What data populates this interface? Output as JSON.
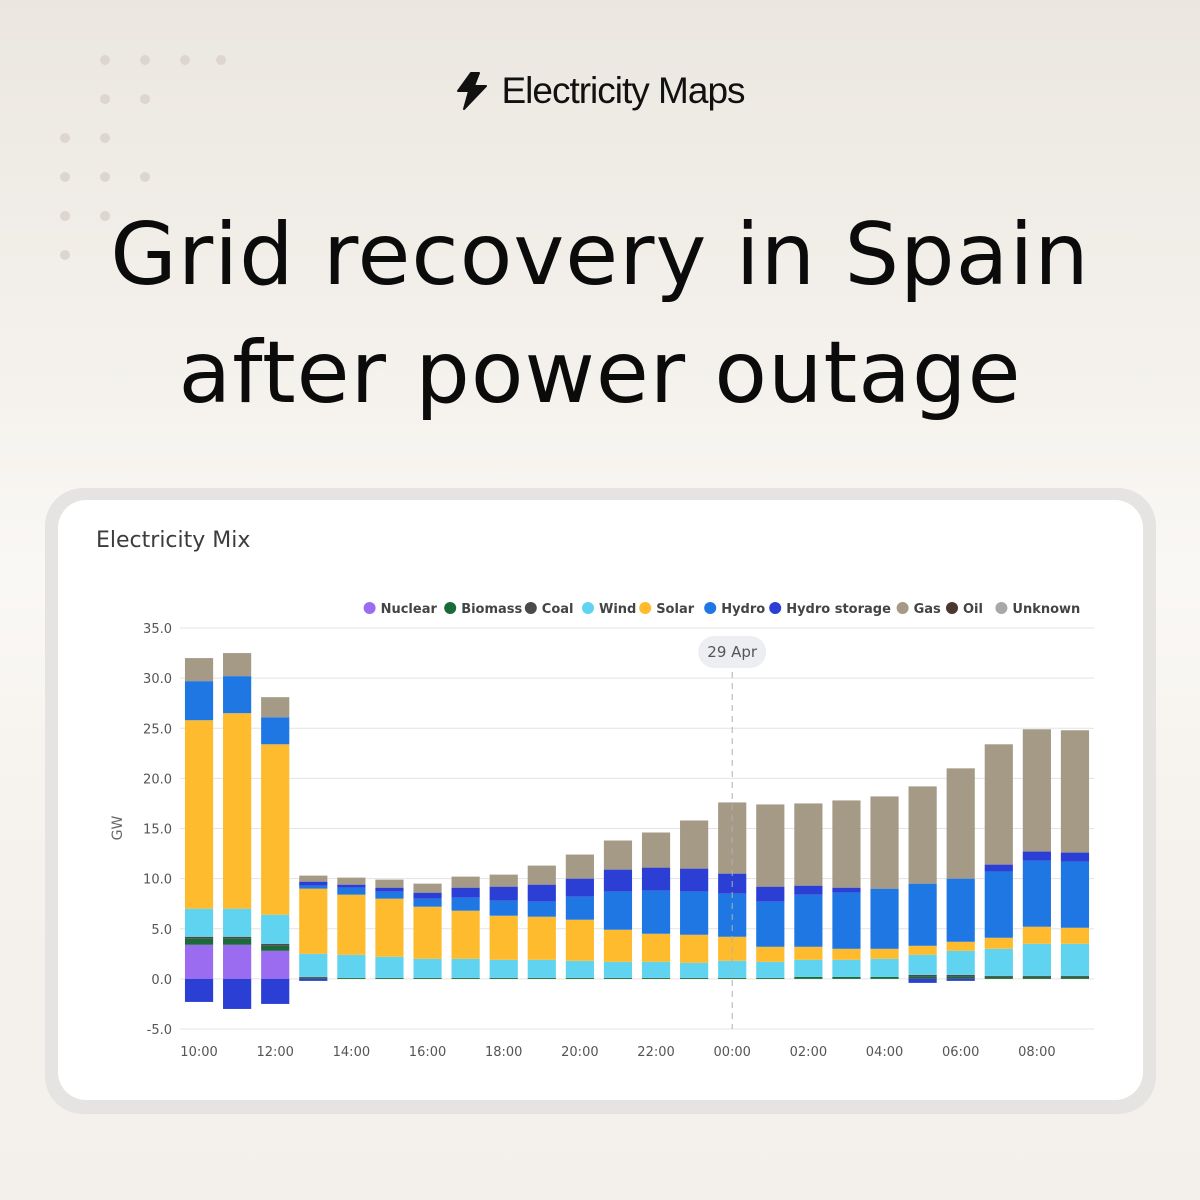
{
  "brand": {
    "name": "Electricity Maps",
    "icon": "lightning-bolt-icon"
  },
  "headline": {
    "line1": "Grid recovery in Spain",
    "line2": "after power outage"
  },
  "card": {
    "title": "Electricity Mix"
  },
  "chart_data": {
    "type": "bar",
    "stacked": true,
    "ylabel": "GW",
    "xlabel": "",
    "ylim": [
      -5,
      35
    ],
    "yticks": [
      "35.0",
      "30.0",
      "25.0",
      "20.0",
      "15.0",
      "10.0",
      "5.0",
      "0.0",
      "-5.0"
    ],
    "ytick_values": [
      35,
      30,
      25,
      20,
      15,
      10,
      5,
      0,
      -5
    ],
    "grid": true,
    "legend_position": "top",
    "categories": [
      "10:00",
      "11:00",
      "12:00",
      "13:00",
      "14:00",
      "15:00",
      "16:00",
      "17:00",
      "18:00",
      "19:00",
      "20:00",
      "21:00",
      "22:00",
      "23:00",
      "00:00",
      "01:00",
      "02:00",
      "03:00",
      "04:00",
      "05:00",
      "06:00",
      "07:00",
      "08:00",
      "09:00"
    ],
    "xtick_labels": [
      "10:00",
      "",
      "12:00",
      "",
      "14:00",
      "",
      "16:00",
      "",
      "18:00",
      "",
      "20:00",
      "",
      "22:00",
      "",
      "00:00",
      "",
      "02:00",
      "",
      "04:00",
      "",
      "06:00",
      "",
      "08:00",
      ""
    ],
    "annotation": {
      "label": "29 Apr",
      "at_category": "00:00"
    },
    "series": [
      {
        "name": "Nuclear",
        "color": "#9b6cf0",
        "values": [
          3.4,
          3.4,
          2.8,
          0,
          0,
          0,
          0,
          0,
          0,
          0,
          0,
          0,
          0,
          0,
          0,
          0,
          0,
          0,
          0,
          0,
          0,
          0,
          0,
          0
        ]
      },
      {
        "name": "Biomass",
        "color": "#1b6b3a",
        "values": [
          0.6,
          0.6,
          0.5,
          0.1,
          0.1,
          0.1,
          0.1,
          0.1,
          0.1,
          0.1,
          0.1,
          0.1,
          0.1,
          0.1,
          0.1,
          0.1,
          0.2,
          0.2,
          0.2,
          0.2,
          0.2,
          0.2,
          0.2,
          0.2
        ]
      },
      {
        "name": "Coal",
        "color": "#4a4a4a",
        "values": [
          0.2,
          0.2,
          0.2,
          0.1,
          0,
          0,
          0,
          0,
          0,
          0,
          0,
          0,
          0,
          0,
          0,
          0,
          0,
          0,
          0,
          0.2,
          0.2,
          0.1,
          0.1,
          0.1
        ]
      },
      {
        "name": "Wind",
        "color": "#5fd3ef",
        "values": [
          2.8,
          2.8,
          2.9,
          2.3,
          2.3,
          2.1,
          1.9,
          1.9,
          1.8,
          1.8,
          1.7,
          1.6,
          1.6,
          1.5,
          1.7,
          1.6,
          1.7,
          1.7,
          1.8,
          2.0,
          2.4,
          2.7,
          3.2,
          3.2
        ]
      },
      {
        "name": "Solar",
        "color": "#fdbb2d",
        "values": [
          18.8,
          19.5,
          17.0,
          6.5,
          6.0,
          5.8,
          5.2,
          4.8,
          4.4,
          4.3,
          4.1,
          3.2,
          2.8,
          2.8,
          2.4,
          1.5,
          1.3,
          1.1,
          1.0,
          0.9,
          0.9,
          1.1,
          1.7,
          1.6
        ]
      },
      {
        "name": "Hydro",
        "color": "#1f77e4",
        "values": [
          3.9,
          3.7,
          2.7,
          0.3,
          0.7,
          0.7,
          0.8,
          1.3,
          1.5,
          1.5,
          2.3,
          3.8,
          4.3,
          4.3,
          4.3,
          4.5,
          5.2,
          5.6,
          6.0,
          6.2,
          6.3,
          6.6,
          6.6,
          6.6
        ]
      },
      {
        "name": "Hydro storage",
        "color": "#2c3fd4",
        "values": [
          0,
          0,
          0,
          0.4,
          0.3,
          0.4,
          0.6,
          1.0,
          1.4,
          1.7,
          1.8,
          2.2,
          2.3,
          2.3,
          2.0,
          1.5,
          0.9,
          0.5,
          0,
          0,
          0,
          0.7,
          0.9,
          0.9
        ]
      },
      {
        "name": "Gas",
        "color": "#a59a85",
        "values": [
          2.3,
          2.3,
          2.0,
          0.6,
          0.7,
          0.8,
          0.9,
          1.1,
          1.2,
          1.9,
          2.4,
          2.9,
          3.5,
          4.8,
          7.1,
          8.2,
          8.2,
          8.7,
          9.2,
          9.7,
          11.0,
          12.0,
          12.2,
          12.2
        ]
      },
      {
        "name": "Oil",
        "color": "#4a372e",
        "values": [
          0,
          0,
          0,
          0,
          0,
          0,
          0,
          0,
          0,
          0,
          0,
          0,
          0,
          0,
          0,
          0,
          0,
          0,
          0,
          0,
          0,
          0,
          0,
          0
        ]
      },
      {
        "name": "Unknown",
        "color": "#a8a8a8",
        "values": [
          0,
          0,
          0,
          0,
          0,
          0,
          0,
          0,
          0,
          0,
          0,
          0,
          0,
          0,
          0,
          0,
          0,
          0,
          0,
          0,
          0,
          0,
          0,
          0
        ]
      },
      {
        "name": "Hydro storage (pumping)",
        "color": "#2c3fd4",
        "legend": false,
        "values": [
          -2.3,
          -3.0,
          -2.5,
          -0.2,
          0,
          0,
          0,
          0,
          0,
          0,
          0,
          0,
          0,
          0,
          0,
          0,
          0,
          0,
          0,
          -0.4,
          -0.2,
          0,
          0,
          0
        ]
      }
    ]
  }
}
